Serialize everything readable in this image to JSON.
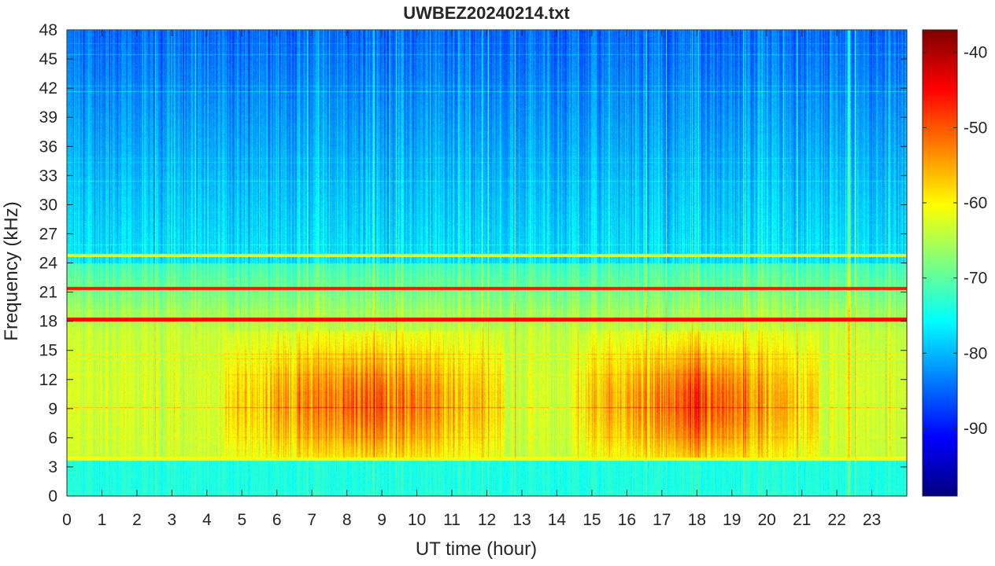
{
  "chart_data": {
    "type": "heatmap",
    "title": "UWBEZ20240214.txt",
    "xlabel": "UT time (hour)",
    "ylabel": "Frequency (kHz)",
    "xlim": [
      0,
      24
    ],
    "ylim": [
      0,
      48
    ],
    "x_ticks": [
      "0",
      "1",
      "2",
      "3",
      "4",
      "5",
      "6",
      "7",
      "8",
      "9",
      "10",
      "11",
      "12",
      "13",
      "14",
      "15",
      "16",
      "17",
      "18",
      "19",
      "20",
      "21",
      "22",
      "23"
    ],
    "y_ticks": [
      "0",
      "3",
      "6",
      "9",
      "12",
      "15",
      "18",
      "21",
      "24",
      "27",
      "30",
      "33",
      "36",
      "39",
      "42",
      "45",
      "48"
    ],
    "colorbar": {
      "colormap": "jet",
      "range": [
        -99,
        -37
      ],
      "ticks": [
        "-40",
        "-50",
        "-60",
        "-70",
        "-80",
        "-90"
      ]
    },
    "persistent_lines_khz": [
      {
        "freq": 18.2,
        "level": -45
      },
      {
        "freq": 21.4,
        "level": -46
      },
      {
        "freq": 24.8,
        "level": -62
      },
      {
        "freq": 3.9,
        "level": -60
      }
    ],
    "broadband_emission": {
      "freq_range_khz": [
        4,
        17
      ],
      "peak_level": -50,
      "active_hours": [
        [
          4.5,
          12.5
        ],
        [
          14.5,
          21.5
        ]
      ]
    },
    "background_level_high_freq": -85
  }
}
